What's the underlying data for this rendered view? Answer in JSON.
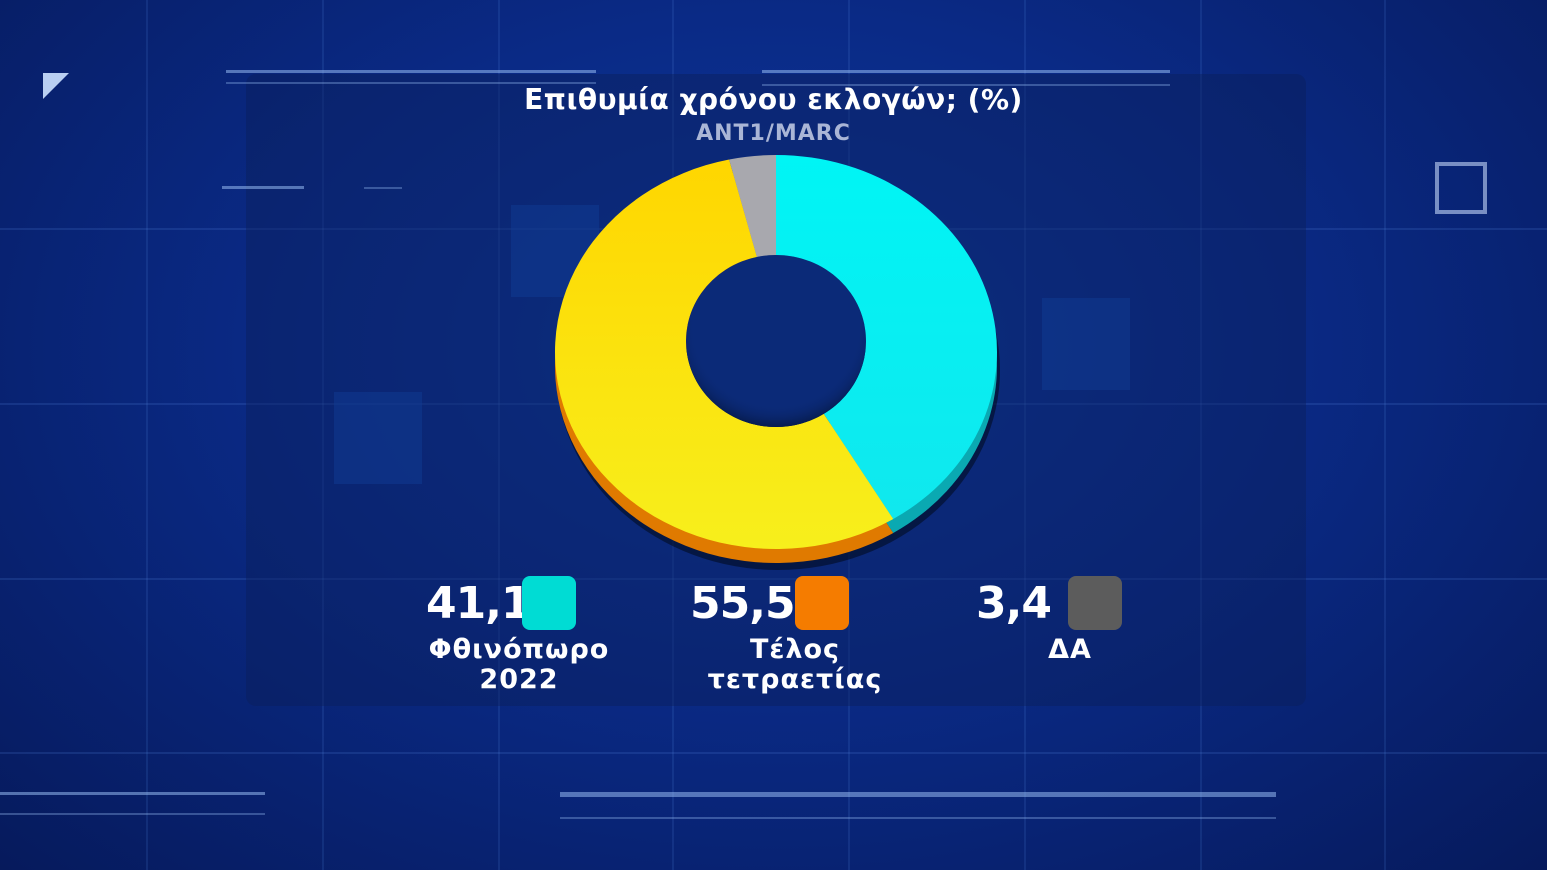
{
  "title": "Επιθυμία χρόνου εκλογών; (%)",
  "subtitle": "ANT1/MARC",
  "chart_data": {
    "type": "pie",
    "title": "Επιθυμία χρόνου εκλογών; (%)",
    "subtitle": "ANT1/MARC",
    "donut": true,
    "categories": [
      "Φθινόπωρο 2022",
      "Τέλος τετραετίας",
      "ΔΑ"
    ],
    "values": [
      41.1,
      55.5,
      3.4
    ],
    "value_labels": [
      "41,1",
      "55,5",
      "3,4"
    ],
    "label_lines": [
      [
        "Φθινόπωρο",
        "2022"
      ],
      [
        "Τέλος",
        "τετραετίας"
      ],
      [
        "ΔΑ"
      ]
    ],
    "slice_colors": [
      "#00f0f0",
      "#ffd400",
      "#a8a8ae"
    ],
    "legend_colors": [
      "#00dcd4",
      "#f57c00",
      "#5c5c5c"
    ],
    "legend_placement": "bottom"
  }
}
